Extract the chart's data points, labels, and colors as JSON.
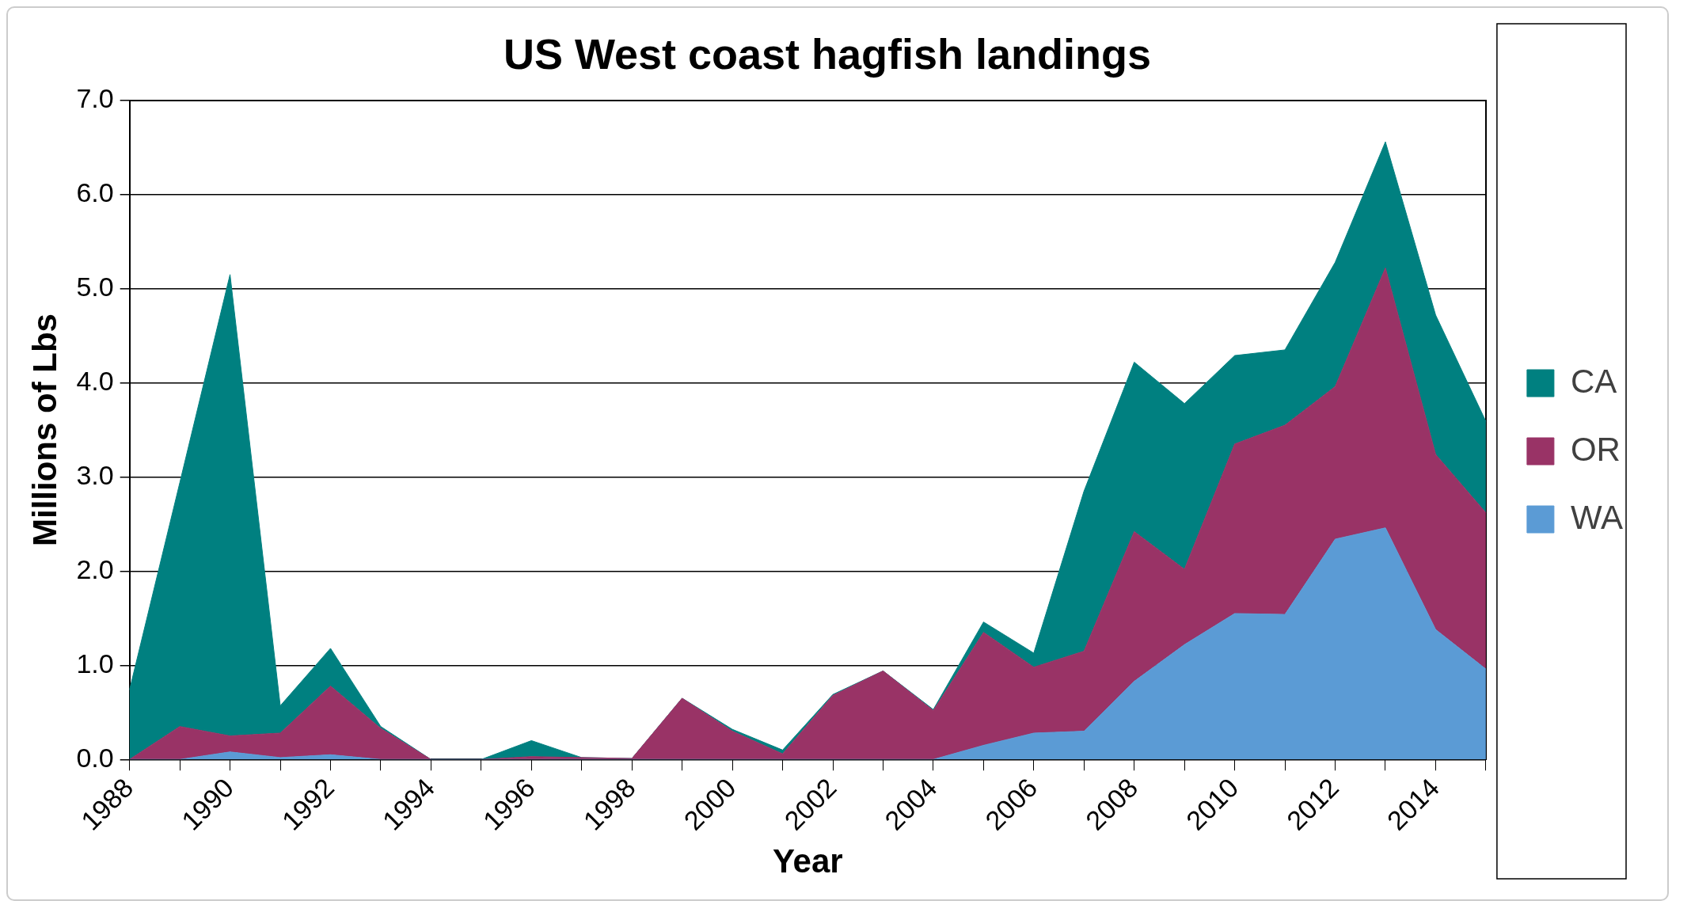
{
  "chart_data": {
    "type": "area",
    "title": "US West coast hagfish landings",
    "xlabel": "Year",
    "ylabel": "Millions of Lbs",
    "stacked": true,
    "categories": [
      "1988",
      null,
      "1990",
      null,
      "1992",
      null,
      "1994",
      null,
      "1996",
      null,
      "1998",
      null,
      "2000",
      null,
      "2002",
      null,
      "2004",
      null,
      "2006",
      null,
      "2008",
      null,
      "2010",
      null,
      "2012",
      null,
      "2014",
      null
    ],
    "series": [
      {
        "name": "WA",
        "color": "#5b9bd5",
        "values": [
          0,
          0,
          0.08,
          0.02,
          0.05,
          0,
          0,
          0,
          0,
          0,
          0,
          0,
          0,
          0,
          0,
          0,
          0,
          0.15,
          0.28,
          0.3,
          0.83,
          1.22,
          1.55,
          1.54,
          2.34,
          2.46,
          1.38,
          0.96
        ]
      },
      {
        "name": "OR",
        "color": "#993366",
        "values": [
          0,
          0.35,
          0.17,
          0.26,
          0.73,
          0.33,
          0,
          0,
          0.03,
          0.02,
          0.01,
          0.65,
          0.3,
          0.06,
          0.68,
          0.94,
          0.52,
          1.2,
          0.7,
          0.85,
          1.59,
          0.8,
          1.8,
          2.01,
          1.62,
          2.76,
          1.86,
          1.66
        ]
      },
      {
        "name": "CA",
        "color": "#008080",
        "values": [
          0.74,
          2.59,
          4.9,
          0.29,
          0.4,
          0.02,
          0,
          0,
          0.17,
          0,
          0,
          0,
          0.02,
          0.04,
          0.01,
          0,
          0.01,
          0.11,
          0.15,
          1.7,
          1.8,
          1.76,
          0.94,
          0.8,
          1.32,
          1.34,
          1.48,
          0.97
        ]
      }
    ],
    "ylim": [
      0,
      7
    ],
    "yticks": [
      {
        "value": 0,
        "label": "0.0"
      },
      {
        "value": 1,
        "label": "1.0"
      },
      {
        "value": 2,
        "label": "2.0"
      },
      {
        "value": 3,
        "label": "3.0"
      },
      {
        "value": 4,
        "label": "4.0"
      },
      {
        "value": 5,
        "label": "5.0"
      },
      {
        "value": 6,
        "label": "6.0"
      },
      {
        "value": 7,
        "label": "7.0"
      }
    ],
    "grid": "y",
    "legend": "right"
  }
}
